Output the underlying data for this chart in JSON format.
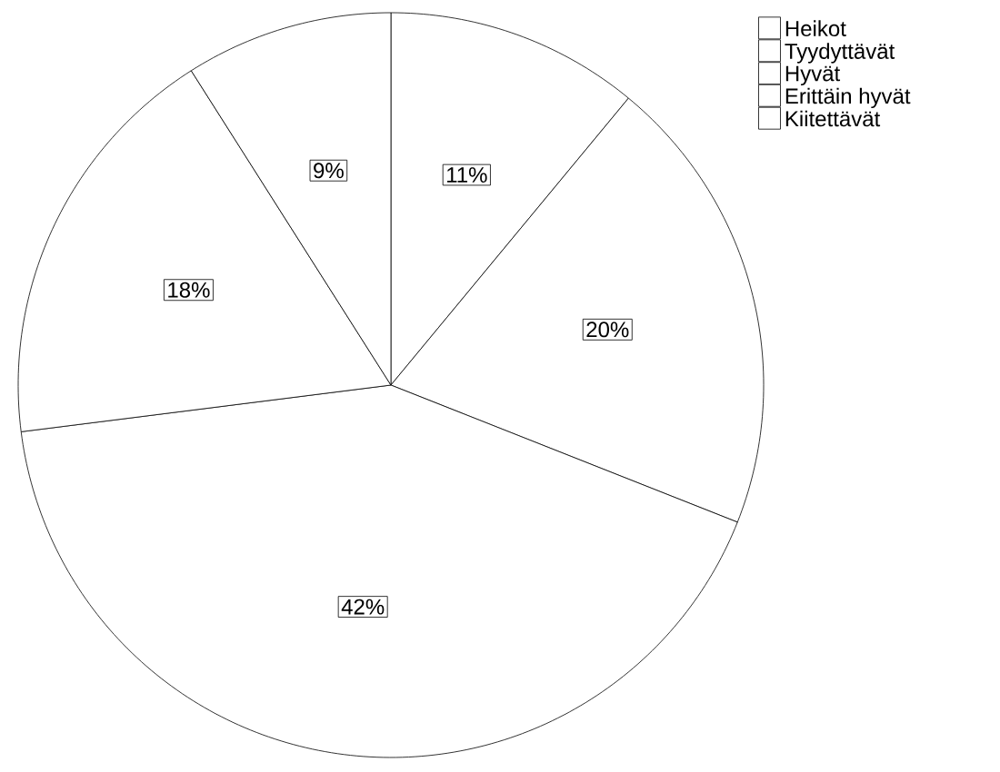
{
  "chart_data": {
    "type": "pie",
    "categories": [
      "Heikot",
      "Tyydyttävät",
      "Hyvät",
      "Erittäin hyvät",
      "Kiitettävät"
    ],
    "values": [
      11,
      20,
      42,
      18,
      9
    ],
    "value_labels": [
      "11%",
      "20%",
      "42%",
      "18%",
      "9%"
    ],
    "colors": [
      "#ffffff",
      "#ffffff",
      "#ffffff",
      "#ffffff",
      "#ffffff"
    ],
    "legend": "top right"
  }
}
